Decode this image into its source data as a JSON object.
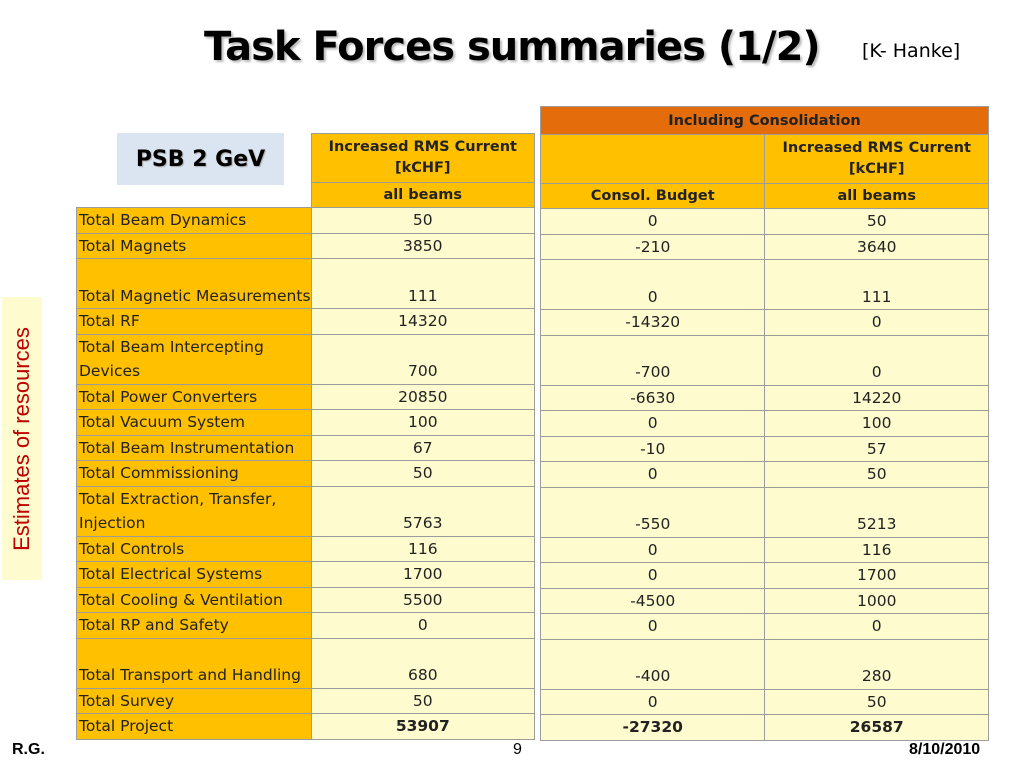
{
  "title": "Task Forces summaries (1/2)",
  "author": "[K- Hanke]",
  "side_label": "Estimates of resources",
  "box_label": "PSB 2 GeV",
  "left_table": {
    "header1": "Increased RMS Current [kCHF]",
    "header2": "all beams"
  },
  "right_table": {
    "super_header": "Including Consolidation",
    "col1_header": "Consol. Budget",
    "col2_header1": "Increased RMS Current [kCHF]",
    "col2_header2": "all beams"
  },
  "rows": [
    {
      "label": "Total Beam Dynamics",
      "current": "50",
      "consol": "0",
      "total": "50"
    },
    {
      "label": "Total Magnets",
      "current": "3850",
      "consol": "-210",
      "total": "3640"
    },
    {
      "label": "Total Magnetic Measurements",
      "current": "111",
      "consol": "0",
      "total": "111"
    },
    {
      "label": "Total RF",
      "current": "14320",
      "consol": "-14320",
      "total": "0"
    },
    {
      "label": "Total Beam Intercepting Devices",
      "current": "700",
      "consol": "-700",
      "total": "0"
    },
    {
      "label": "Total Power Converters",
      "current": "20850",
      "consol": "-6630",
      "total": "14220"
    },
    {
      "label": "Total Vacuum System",
      "current": "100",
      "consol": "0",
      "total": "100"
    },
    {
      "label": "Total Beam Instrumentation",
      "current": "67",
      "consol": "-10",
      "total": "57"
    },
    {
      "label": "Total Commissioning",
      "current": "50",
      "consol": "0",
      "total": "50"
    },
    {
      "label": "Total Extraction, Transfer, Injection",
      "current": "5763",
      "consol": "-550",
      "total": "5213"
    },
    {
      "label": "Total Controls",
      "current": "116",
      "consol": "0",
      "total": "116"
    },
    {
      "label": "Total Electrical Systems",
      "current": "1700",
      "consol": "0",
      "total": "1700"
    },
    {
      "label": "Total Cooling & Ventilation",
      "current": "5500",
      "consol": "-4500",
      "total": "1000"
    },
    {
      "label": "Total RP and Safety",
      "current": "0",
      "consol": "0",
      "total": "0"
    },
    {
      "label": "Total Transport and Handling",
      "current": "680",
      "consol": "-400",
      "total": "280"
    },
    {
      "label": "Total Survey",
      "current": "50",
      "consol": "0",
      "total": "50"
    },
    {
      "label": "Total Project",
      "current": "53907",
      "consol": "-27320",
      "total": "26587"
    }
  ],
  "footer": {
    "left": "R.G.",
    "page": "9",
    "date": "8/10/2010"
  },
  "colors": {
    "header_yellow": "#ffc000",
    "header_orange": "#e46c0a",
    "cell_cream": "#fefcce",
    "side_text_red": "#c00000",
    "box_blue": "#dbe5f1"
  }
}
